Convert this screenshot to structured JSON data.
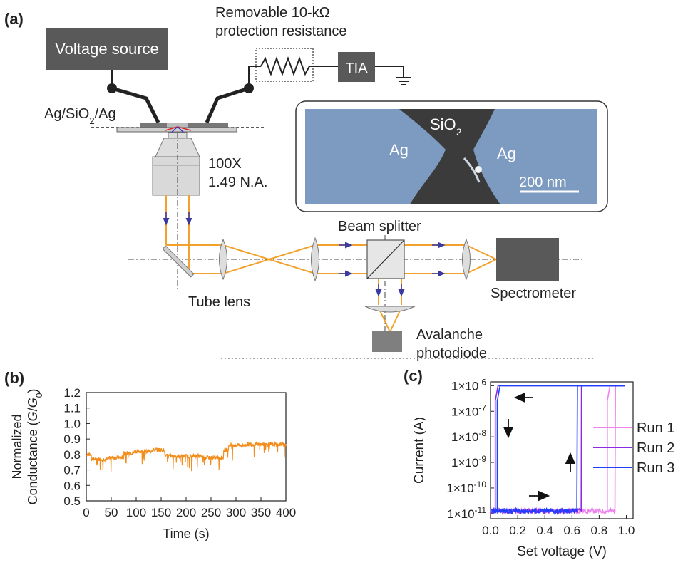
{
  "panels": {
    "a": "(a)",
    "b": "(b)",
    "c": "(c)"
  },
  "diagram": {
    "voltage_source": "Voltage source",
    "resistor_label_1": "Removable 10-kΩ",
    "resistor_label_2": "protection resistance",
    "tia": "TIA",
    "sample": "Ag/SiO",
    "sample_sub": "2",
    "sample_tail": "/Ag",
    "objective_1": "100X",
    "objective_2": "1.49 N.A.",
    "beam_splitter": "Beam splitter",
    "tube_lens": "Tube lens",
    "spectrometer": "Spectrometer",
    "apd_1": "Avalanche",
    "apd_2": "photodiode",
    "sem": {
      "sio2": "SiO",
      "sio2_sub": "2",
      "ag_left": "Ag",
      "ag_right": "Ag",
      "scale": "200 nm"
    }
  },
  "chart_data": [
    {
      "type": "line",
      "id": "b",
      "xlabel": "Time (s)",
      "ylabel_line1": "Normalized",
      "ylabel_line2": "Conductance (",
      "ylabel_G": "G",
      "ylabel_slash": "/",
      "ylabel_G0": "G",
      "ylabel_G0_sub": "0",
      "ylabel_close": ")",
      "xlim": [
        0,
        400
      ],
      "ylim": [
        0.5,
        1.2
      ],
      "xticks": [
        "0",
        "50",
        "100",
        "150",
        "200",
        "250",
        "300",
        "350",
        "400"
      ],
      "yticks": [
        "0.5",
        "0.6",
        "0.7",
        "0.8",
        "0.9",
        "1.0",
        "1.1",
        "1.2"
      ],
      "color": "#f28c1b",
      "segments": [
        {
          "x": [
            0,
            10
          ],
          "y": 0.8
        },
        {
          "x": [
            10,
            45
          ],
          "y": 0.77
        },
        {
          "x": [
            45,
            75
          ],
          "y": 0.78
        },
        {
          "x": [
            75,
            95
          ],
          "y": 0.81
        },
        {
          "x": [
            95,
            130
          ],
          "y": 0.82
        },
        {
          "x": [
            130,
            157
          ],
          "y": 0.83
        },
        {
          "x": [
            157,
            230
          ],
          "y": 0.79
        },
        {
          "x": [
            230,
            275
          ],
          "y": 0.78
        },
        {
          "x": [
            275,
            285
          ],
          "y": 0.83
        },
        {
          "x": [
            285,
            320
          ],
          "y": 0.86
        },
        {
          "x": [
            320,
            400
          ],
          "y": 0.865
        }
      ]
    },
    {
      "type": "line",
      "id": "c",
      "xlabel": "Set voltage (V)",
      "ylabel": "Current (A)",
      "yscale": "log",
      "xlim": [
        0,
        1.05
      ],
      "ylim_exp": [
        -11.2,
        -5.85
      ],
      "xticks": [
        "0.0",
        "0.2",
        "0.4",
        "0.6",
        "0.8",
        "1.0"
      ],
      "ytick_exps": [
        -6,
        -7,
        -8,
        -9,
        -10,
        -11
      ],
      "ytick_base": "1×10",
      "legend_position": "right",
      "series": [
        {
          "name": "Run 1",
          "color": "#ee82ee",
          "on_v": 0.92,
          "off_v": 0.86
        },
        {
          "name": "Run 2",
          "color": "#8a2be2",
          "on_v": 0.67,
          "off_v": 0.035
        },
        {
          "name": "Run 3",
          "color": "#1f3fff",
          "on_v": 0.64,
          "off_v": 0.05
        }
      ]
    }
  ]
}
